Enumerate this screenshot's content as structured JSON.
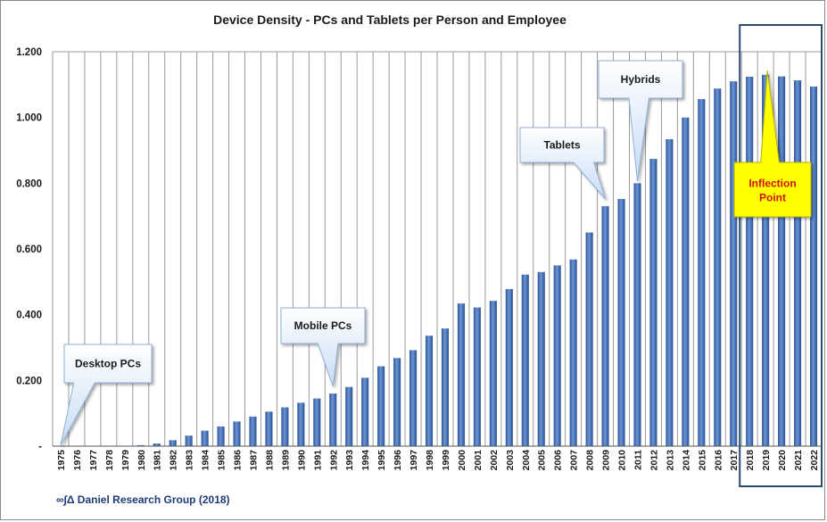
{
  "chart_data": {
    "type": "bar",
    "title": "Device Density - PCs and Tablets per Person and Employee",
    "xlabel": "",
    "ylabel": "",
    "ylim": [
      0,
      1.2
    ],
    "yticks": [
      "-",
      "0.200",
      "0.400",
      "0.600",
      "0.800",
      "1.000",
      "1.200"
    ],
    "grid": "vertical",
    "categories": [
      "1975",
      "1976",
      "1977",
      "1978",
      "1979",
      "1980",
      "1981",
      "1982",
      "1983",
      "1984",
      "1985",
      "1986",
      "1987",
      "1988",
      "1989",
      "1990",
      "1991",
      "1992",
      "1993",
      "1994",
      "1995",
      "1996",
      "1997",
      "1998",
      "1999",
      "2000",
      "2001",
      "2002",
      "2003",
      "2004",
      "2005",
      "2006",
      "2007",
      "2008",
      "2009",
      "2010",
      "2011",
      "2012",
      "2013",
      "2014",
      "2015",
      "2016",
      "2017",
      "2018",
      "2019",
      "2020",
      "2021",
      "2022"
    ],
    "values": [
      0,
      0,
      0,
      0,
      0,
      0.003,
      0.008,
      0.018,
      0.032,
      0.047,
      0.06,
      0.075,
      0.09,
      0.105,
      0.118,
      0.132,
      0.145,
      0.16,
      0.18,
      0.208,
      0.243,
      0.268,
      0.292,
      0.336,
      0.358,
      0.434,
      0.422,
      0.442,
      0.478,
      0.522,
      0.53,
      0.55,
      0.568,
      0.65,
      0.73,
      0.752,
      0.8,
      0.874,
      0.934,
      1.0,
      1.056,
      1.088,
      1.11,
      1.124,
      1.13,
      1.125,
      1.113,
      1.094
    ],
    "annotations": [
      {
        "label": "Desktop PCs",
        "year": "1975"
      },
      {
        "label": "Mobile PCs",
        "year": "1992"
      },
      {
        "label": "Tablets",
        "year": "2009"
      },
      {
        "label": "Hybrids",
        "year": "2011"
      },
      {
        "label": "Inflection Point",
        "year": "2019"
      }
    ],
    "highlight_range": [
      "2018",
      "2022"
    ],
    "bar_color": "#3f6db5",
    "source": "∞∫Δ Daniel Research Group (2018)"
  }
}
